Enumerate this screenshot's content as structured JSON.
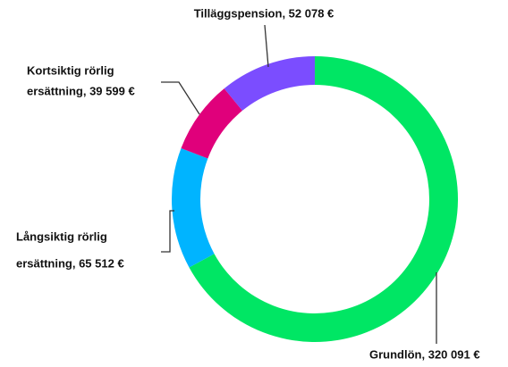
{
  "chart_data": {
    "type": "donut",
    "labels": [
      [
        "Grundlön, 320 091 €"
      ],
      [
        "Långsiktig rörlig",
        "ersättning, 65 512 €"
      ],
      [
        "Kortsiktig rörlig",
        "ersättning, 39 599 €"
      ],
      [
        "Tilläggspension, 52 078 €"
      ]
    ],
    "values": [
      320091,
      65512,
      39599,
      52078
    ],
    "colors": [
      "#00e664",
      "#00b4ff",
      "#e0007b",
      "#7b4dff"
    ]
  }
}
